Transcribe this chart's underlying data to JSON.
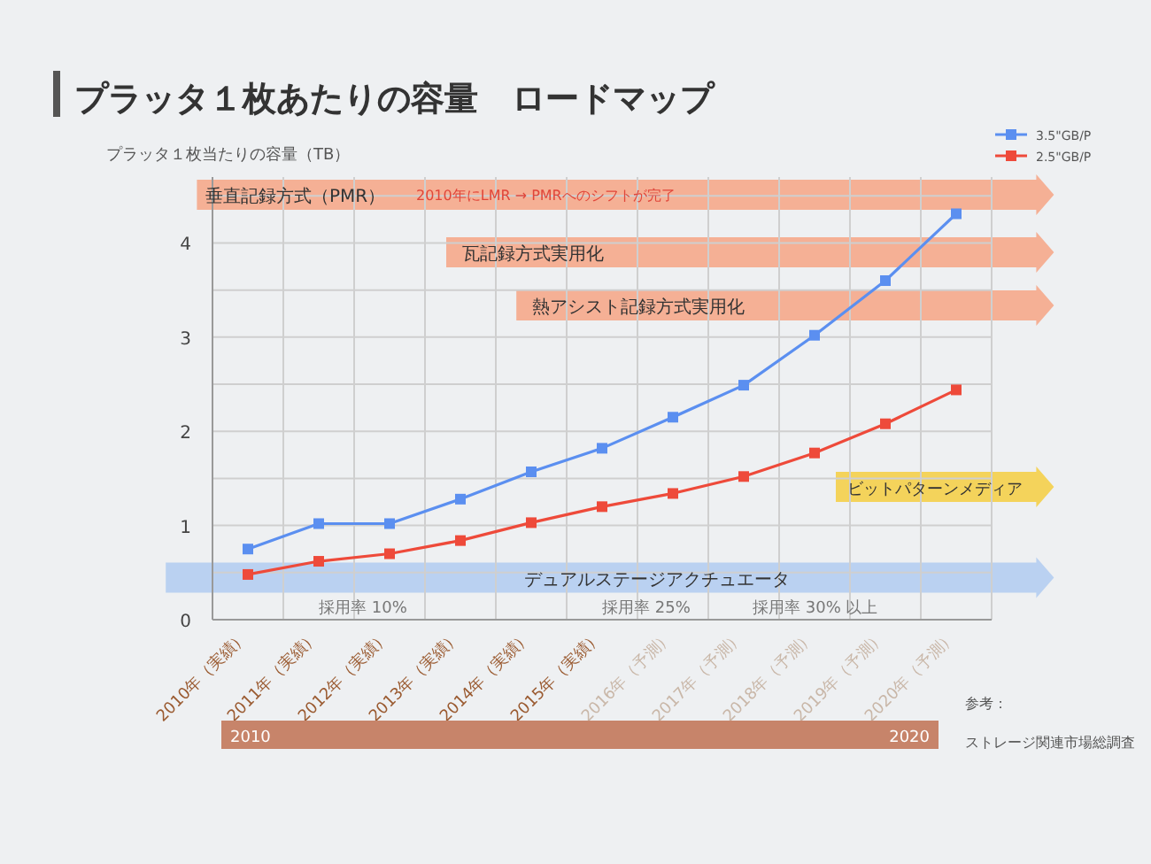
{
  "chart_data": {
    "type": "line",
    "title": "プラッタ１枚あたりの容量　ロードマップ",
    "ylabel": "プラッタ１枚当たりの容量（TB）",
    "categories": [
      "2010年（実績）",
      "2011年（実績）",
      "2012年（実績）",
      "2013年（実績）",
      "2014年（実績）",
      "2015年（実績）",
      "2016年（予測）",
      "2017年（予測）",
      "2018年（予測）",
      "2019年（予測）",
      "2020年（予測）"
    ],
    "series": [
      {
        "name": "3.5\"GB/P",
        "color": "#5b8ff0",
        "values": [
          0.75,
          1.02,
          1.02,
          1.28,
          1.57,
          1.82,
          2.15,
          2.49,
          3.02,
          3.6,
          4.31
        ]
      },
      {
        "name": "2.5\"GB/P",
        "color": "#ee4a3a",
        "values": [
          0.48,
          0.62,
          0.7,
          0.84,
          1.03,
          1.2,
          1.34,
          1.52,
          1.77,
          2.08,
          2.44
        ]
      }
    ],
    "ylim": [
      0,
      4.7
    ],
    "yticks": [
      0,
      {
        "value": 0.5,
        "label": null
      },
      1,
      {
        "value": 1.5,
        "label": null
      },
      2,
      {
        "value": 2.5,
        "label": null
      },
      3,
      {
        "value": 3.5,
        "label": null
      },
      4,
      {
        "value": 4.5,
        "label": null
      }
    ],
    "grid": true,
    "legend": "top right",
    "marker": "square",
    "line_style": "solid",
    "annotations": [
      "垂直記録方式（PMR）",
      "2010年にLMR → PMRへのシフトが完了",
      "瓦記録方式実用化",
      "熱アシスト記録方式実用化",
      "ビットパターンメディア",
      "デュアルステージアクチュエータ",
      "採用率 10%",
      "採用率 25%",
      "採用率 30% 以上",
      "2010",
      "2020",
      "参考：",
      "ストレージ関連市場総調査"
    ]
  }
}
